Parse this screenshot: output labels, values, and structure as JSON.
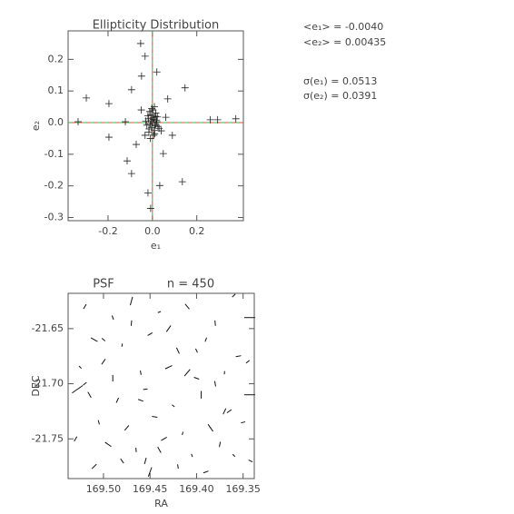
{
  "chart_data": [
    {
      "type": "scatter",
      "title": "Ellipticity Distribution",
      "xlabel": "e₁",
      "ylabel": "e₂",
      "xlim": [
        -0.38,
        0.41
      ],
      "ylim": [
        -0.31,
        0.29
      ],
      "xticks": [
        -0.2,
        {
          "value": 0,
          "label": "0.0"
        },
        0.2
      ],
      "yticks": [
        -0.3,
        -0.2,
        -0.1,
        {
          "value": 0,
          "label": "0.0"
        },
        0.1,
        0.2
      ],
      "color": "#222222",
      "reference_x": 0,
      "reference_y": 0,
      "reference_colors": [
        "#3cb043",
        "#e0483a"
      ],
      "annotations": [
        "<e₁> = -0.0040",
        "<e₂> = 0.00435",
        "σ(e₁) = 0.0513",
        "σ(e₂) = 0.0391"
      ],
      "x": [
        0.005,
        -0.01,
        0.012,
        -0.004,
        0.02,
        -0.018,
        0.008,
        -0.025,
        0.015,
        0.0,
        -0.007,
        0.025,
        -0.015,
        0.01,
        0.003,
        -0.012,
        0.018,
        -0.02,
        0.006,
        -0.003,
        0.03,
        -0.03,
        0.009,
        -0.009,
        0.014,
        0.002,
        -0.016,
        0.022,
        -0.006,
        0.011,
        -0.053,
        -0.033,
        -0.049,
        0.02,
        -0.298,
        -0.196,
        0.147,
        -0.094,
        0.069,
        0.261,
        0.376,
        -0.196,
        -0.073,
        -0.114,
        -0.094,
        -0.02,
        -0.008,
        0.033,
        0.135,
        0.049,
        0.09,
        -0.122,
        -0.335,
        0.294,
        0.06,
        -0.05,
        0.04,
        -0.033
      ],
      "y": [
        0.01,
        -0.005,
        0.02,
        -0.015,
        0.003,
        0.012,
        -0.025,
        -0.008,
        0.03,
        0.0,
        0.025,
        -0.012,
        -0.02,
        -0.035,
        0.015,
        0.035,
        0.008,
        0.022,
        -0.04,
        0.045,
        -0.018,
        0.005,
        0.05,
        -0.05,
        -0.006,
        0.04,
        -0.03,
        0.018,
        0.006,
        -0.01,
        0.25,
        0.21,
        0.147,
        0.16,
        0.078,
        0.06,
        0.11,
        0.104,
        0.075,
        0.009,
        0.012,
        -0.046,
        -0.069,
        -0.121,
        -0.161,
        -0.222,
        -0.271,
        -0.199,
        -0.187,
        -0.098,
        -0.04,
        0.003,
        0.003,
        0.009,
        0.017,
        0.04,
        -0.026,
        -0.04
      ]
    },
    {
      "type": "whisker",
      "title": "PSF",
      "subtitle": "n = 450",
      "xlabel": "RA",
      "ylabel": "DEC",
      "xlim": [
        169.538,
        169.338
      ],
      "ylim": [
        -21.786,
        -21.618
      ],
      "xticks": [
        {
          "value": 169.5,
          "label": "169.50"
        },
        {
          "value": 169.45,
          "label": "169.45"
        },
        {
          "value": 169.4,
          "label": "169.40"
        },
        {
          "value": 169.35,
          "label": "169.35"
        }
      ],
      "yticks": [
        -21.65,
        {
          "value": -21.7,
          "label": "-21.70"
        },
        -21.75
      ],
      "color": "#111111",
      "ra": [
        169.52,
        169.49,
        169.47,
        169.44,
        169.41,
        169.38,
        169.36,
        169.51,
        169.48,
        169.45,
        169.42,
        169.39,
        169.355,
        169.525,
        169.5,
        169.46,
        169.43,
        169.4,
        169.37,
        169.345,
        169.515,
        169.485,
        169.455,
        169.425,
        169.395,
        169.365,
        169.505,
        169.475,
        169.445,
        169.415,
        169.385,
        169.35,
        169.53,
        169.495,
        169.465,
        169.435,
        169.405,
        169.375,
        169.342,
        169.51,
        169.48,
        169.45,
        169.42,
        169.39,
        169.36,
        169.52,
        169.49,
        169.46,
        169.43,
        169.4,
        169.37,
        169.528,
        169.343,
        169.343,
        169.47,
        169.44,
        169.41,
        169.5,
        169.38,
        169.455
      ],
      "dec": [
        -21.63,
        -21.64,
        -21.625,
        -21.635,
        -21.63,
        -21.645,
        -21.62,
        -21.66,
        -21.665,
        -21.655,
        -21.67,
        -21.66,
        -21.675,
        -21.685,
        -21.68,
        -21.69,
        -21.685,
        -21.695,
        -21.69,
        -21.68,
        -21.71,
        -21.715,
        -21.705,
        -21.72,
        -21.71,
        -21.725,
        -21.735,
        -21.74,
        -21.73,
        -21.745,
        -21.74,
        -21.735,
        -21.75,
        -21.755,
        -21.76,
        -21.75,
        -21.765,
        -21.755,
        -21.77,
        -21.775,
        -21.77,
        -21.78,
        -21.775,
        -21.78,
        -21.765,
        -21.7,
        -21.695,
        -21.715,
        -21.65,
        -21.67,
        -21.725,
        -21.705,
        -21.64,
        -21.71,
        -21.645,
        -21.76,
        -21.69,
        -21.66,
        -21.7,
        -21.77
      ],
      "e": [
        0.05,
        0.04,
        0.08,
        0.03,
        0.06,
        0.05,
        0.04,
        0.07,
        0.03,
        0.05,
        0.06,
        0.04,
        0.05,
        0.03,
        0.06,
        0.04,
        0.07,
        0.05,
        0.03,
        0.04,
        0.06,
        0.05,
        0.04,
        0.03,
        0.07,
        0.05,
        0.04,
        0.06,
        0.05,
        0.03,
        0.08,
        0.04,
        0.05,
        0.07,
        0.04,
        0.06,
        0.03,
        0.05,
        0.04,
        0.06,
        0.05,
        0.09,
        0.04,
        0.05,
        0.03,
        0.04,
        0.06,
        0.05,
        0.07,
        0.04,
        0.06,
        0.12,
        0.1,
        0.1,
        0.05,
        0.06,
        0.08,
        0.04,
        0.05,
        0.06
      ],
      "angle": [
        60,
        110,
        75,
        20,
        130,
        95,
        45,
        150,
        80,
        30,
        115,
        70,
        10,
        135,
        55,
        100,
        25,
        160,
        85,
        40,
        120,
        65,
        5,
        140,
        90,
        35,
        105,
        50,
        170,
        75,
        125,
        15,
        60,
        145,
        95,
        30,
        110,
        80,
        155,
        45,
        125,
        70,
        100,
        20,
        135,
        40,
        90,
        160,
        55,
        115,
        65,
        35,
        0,
        0,
        85,
        120,
        50,
        140,
        100,
        75
      ]
    }
  ]
}
